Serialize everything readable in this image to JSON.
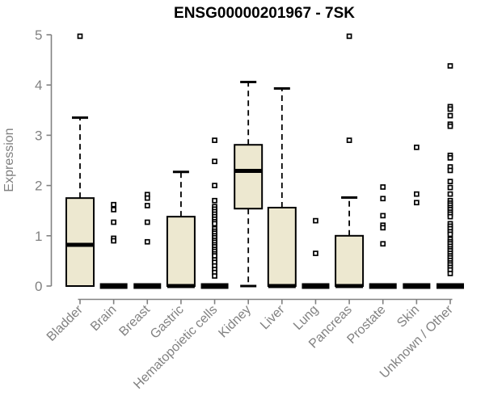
{
  "chart_data": {
    "type": "boxplot",
    "title": "ENSG00000201967 - 7SK",
    "ylabel": "Expression",
    "xlabel": "",
    "ylim": [
      0,
      5
    ],
    "yticks": [
      0,
      1,
      2,
      3,
      4,
      5
    ],
    "grid": false,
    "x_label_rotation_deg": 45,
    "categories": [
      "Bladder",
      "Brain",
      "Breast",
      "Gastric",
      "Hematopoietic cells",
      "Kidney",
      "Liver",
      "Lung",
      "Pancreas",
      "Prostate",
      "Skin",
      "Unknown / Other"
    ],
    "series": [
      {
        "category": "Bladder",
        "whisker_low": 0,
        "q1": 0,
        "median": 0.82,
        "q3": 1.75,
        "whisker_high": 3.35,
        "outliers": [
          4.97
        ]
      },
      {
        "category": "Brain",
        "whisker_low": 0,
        "q1": 0,
        "median": 0,
        "q3": 0,
        "whisker_high": 0,
        "outliers": [
          1.62,
          1.52,
          1.27,
          0.95,
          0.9
        ]
      },
      {
        "category": "Breast",
        "whisker_low": 0,
        "q1": 0,
        "median": 0,
        "q3": 0,
        "whisker_high": 0,
        "outliers": [
          1.82,
          1.75,
          1.6,
          1.27,
          0.88
        ]
      },
      {
        "category": "Gastric",
        "whisker_low": 0,
        "q1": 0,
        "median": 0,
        "q3": 1.38,
        "whisker_high": 2.27,
        "outliers": []
      },
      {
        "category": "Hematopoietic cells",
        "whisker_low": 0,
        "q1": 0,
        "median": 0,
        "q3": 0,
        "whisker_high": 0,
        "outliers": [
          2.9,
          2.48,
          2.0,
          1.7,
          1.58,
          1.53,
          1.48,
          1.43,
          1.38,
          1.33,
          1.28,
          1.24,
          1.14,
          1.09,
          1.05,
          1.0,
          0.96,
          0.91,
          0.87,
          0.82,
          0.78,
          0.73,
          0.69,
          0.64,
          0.6,
          0.52,
          0.47,
          0.4,
          0.33,
          0.27,
          0.2
        ]
      },
      {
        "category": "Kidney",
        "whisker_low": 0,
        "q1": 1.54,
        "median": 2.29,
        "q3": 2.81,
        "whisker_high": 4.06,
        "outliers": []
      },
      {
        "category": "Liver",
        "whisker_low": 0,
        "q1": 0,
        "median": 0,
        "q3": 1.56,
        "whisker_high": 3.93,
        "outliers": []
      },
      {
        "category": "Lung",
        "whisker_low": 0,
        "q1": 0,
        "median": 0,
        "q3": 0,
        "whisker_high": 0,
        "outliers": [
          1.3,
          0.65
        ]
      },
      {
        "category": "Pancreas",
        "whisker_low": 0,
        "q1": 0,
        "median": 0,
        "q3": 1.0,
        "whisker_high": 1.76,
        "outliers": [
          4.97,
          2.9
        ]
      },
      {
        "category": "Prostate",
        "whisker_low": 0,
        "q1": 0,
        "median": 0,
        "q3": 0,
        "whisker_high": 0,
        "outliers": [
          1.97,
          1.74,
          1.4,
          1.21,
          1.16,
          0.84
        ]
      },
      {
        "category": "Skin",
        "whisker_low": 0,
        "q1": 0,
        "median": 0,
        "q3": 0,
        "whisker_high": 0,
        "outliers": [
          2.76,
          1.83,
          1.66
        ]
      },
      {
        "category": "Unknown / Other",
        "whisker_low": 0,
        "q1": 0,
        "median": 0,
        "q3": 0,
        "whisker_high": 0,
        "outliers": [
          4.38,
          3.57,
          3.52,
          3.39,
          3.22,
          3.18,
          2.6,
          2.55,
          2.37,
          2.3,
          2.08,
          1.96,
          1.83,
          1.7,
          1.65,
          1.61,
          1.56,
          1.52,
          1.47,
          1.43,
          1.38,
          1.24,
          1.19,
          1.14,
          1.08,
          1.03,
          0.93,
          0.88,
          0.84,
          0.79,
          0.74,
          0.7,
          0.65,
          0.6,
          0.56,
          0.51,
          0.46,
          0.42,
          0.37,
          0.32,
          0.25
        ]
      }
    ],
    "colors": {
      "box_fill": "#EDE8D0",
      "box_border": "#000000",
      "median": "#000000",
      "whisker": "#000000",
      "outlier": "#000000",
      "axis": "#818181",
      "tick_label": "#818181",
      "title": "#000000"
    }
  }
}
